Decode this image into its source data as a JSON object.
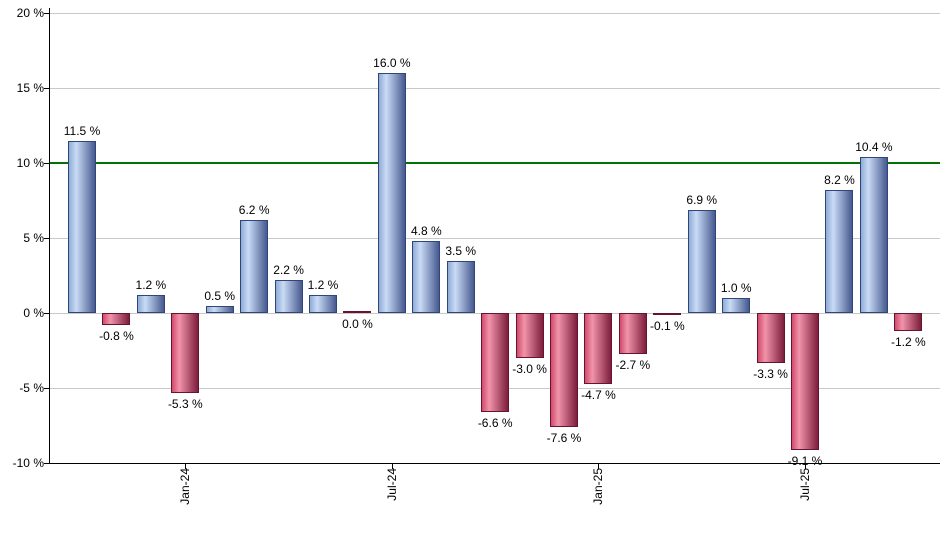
{
  "chart_data": {
    "type": "bar",
    "title": "",
    "xlabel": "",
    "ylabel": "",
    "values": [
      11.5,
      -0.8,
      1.2,
      -5.3,
      0.5,
      6.2,
      2.2,
      1.2,
      0.0,
      16.0,
      4.8,
      3.5,
      -6.6,
      -3.0,
      -7.6,
      -4.7,
      -2.7,
      -0.1,
      6.9,
      1.0,
      -3.3,
      -9.1,
      8.2,
      10.4,
      -1.2
    ],
    "bar_labels": [
      "11.5 %",
      "-0.8 %",
      "1.2 %",
      "-5.3 %",
      "0.5 %",
      "6.2 %",
      "2.2 %",
      "1.2 %",
      "0.0 %",
      "16.0 %",
      "4.8 %",
      "3.5 %",
      "-6.6 %",
      "-3.0 %",
      "-7.6 %",
      "-4.7 %",
      "-2.7 %",
      "-0.1 %",
      "6.9 %",
      "1.0 %",
      "-3.3 %",
      "-9.1 %",
      "8.2 %",
      "10.4 %",
      "-1.2 %"
    ],
    "x_tick_labels": [
      "Jan-24",
      "Jul-24",
      "Jan-25",
      "Jul-25"
    ],
    "x_tick_bar_indices": [
      3,
      9,
      15,
      21
    ],
    "y_tick_labels": [
      "20 %",
      "15 %",
      "10 %",
      "5 %",
      "0 %",
      "-5 %",
      "-10 %"
    ],
    "y_tick_values": [
      20,
      15,
      10,
      5,
      0,
      -5,
      -10
    ],
    "ylim": [
      -10,
      20
    ],
    "reference_line_value": 10,
    "grid": true,
    "legend": "none",
    "colors": {
      "positive_fill_edge": "#8fabd6",
      "positive_fill_light": "#c9dbf5",
      "positive_fill_dark": "#46598f",
      "positive_border": "#2f4679",
      "negative_fill_edge": "#d14b6d",
      "negative_fill_light": "#f193aa",
      "negative_fill_dark": "#7c1e3c",
      "negative_border": "#69142f",
      "reference_line": "#047104",
      "grid_line": "#c8c8c8",
      "axis_line": "#000000",
      "label_text": "#000000",
      "background": "#ffffff"
    }
  }
}
